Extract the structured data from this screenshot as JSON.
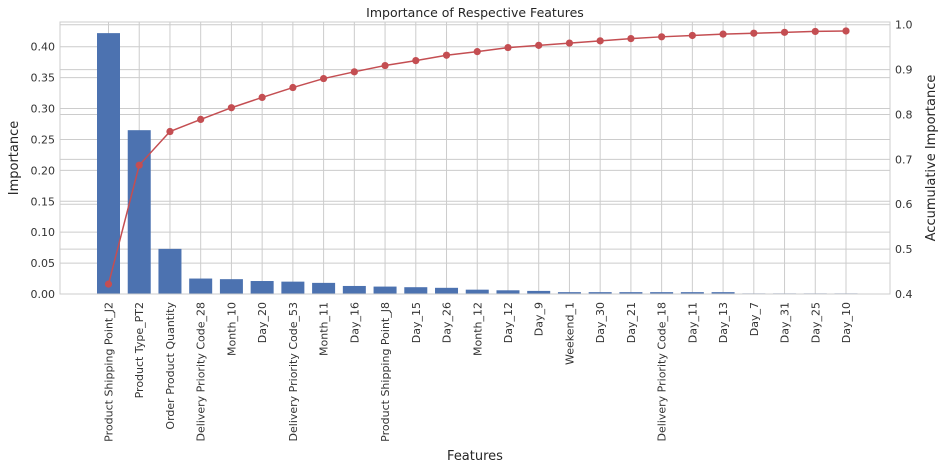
{
  "chart_data": {
    "type": "bar",
    "title": "Importance of Respective Features",
    "xlabel": "Features",
    "ylabel": "Importance",
    "y2label": "Accumulative Importance",
    "categories": [
      "Product Shipping Point_J2",
      "Product Type_PT2",
      "Order Product Quantity",
      "Delivery Priority Code_28",
      "Month_10",
      "Day_20",
      "Delivery Priority Code_53",
      "Month_11",
      "Day_16",
      "Product Shipping Point_J8",
      "Day_15",
      "Day_26",
      "Month_12",
      "Day_12",
      "Day_9",
      "Weekend_1",
      "Day_30",
      "Day_21",
      "Delivery Priority Code_18",
      "Day_11",
      "Day_13",
      "Day_7",
      "Day_31",
      "Day_25",
      "Day_10"
    ],
    "series": [
      {
        "type": "bar",
        "axis": "left",
        "color": "#4c72b0",
        "values": [
          0.422,
          0.265,
          0.073,
          0.025,
          0.024,
          0.021,
          0.02,
          0.018,
          0.013,
          0.012,
          0.011,
          0.01,
          0.007,
          0.006,
          0.005,
          0.003,
          0.003,
          0.003,
          0.003,
          0.003,
          0.003,
          0.001,
          0.001,
          0.001,
          0.001
        ]
      },
      {
        "type": "line",
        "axis": "right",
        "color": "#c44e52",
        "values": [
          0.422,
          0.687,
          0.762,
          0.789,
          0.815,
          0.838,
          0.86,
          0.88,
          0.895,
          0.909,
          0.92,
          0.932,
          0.94,
          0.949,
          0.954,
          0.959,
          0.964,
          0.969,
          0.973,
          0.976,
          0.979,
          0.981,
          0.983,
          0.985,
          0.986
        ]
      }
    ],
    "ylim": [
      0,
      0.44
    ],
    "yticks": [
      0.0,
      0.05,
      0.1,
      0.15,
      0.2,
      0.25,
      0.3,
      0.35,
      0.4
    ],
    "ytick_labels": [
      "0.00",
      "0.05",
      "0.10",
      "0.15",
      "0.20",
      "0.25",
      "0.30",
      "0.35",
      "0.40"
    ],
    "y2lim": [
      0.4,
      1.006
    ],
    "y2ticks": [
      0.4,
      0.5,
      0.6,
      0.7,
      0.8,
      0.9,
      1.0
    ],
    "y2tick_labels": [
      "0.4",
      "0.5",
      "0.6",
      "0.7",
      "0.8",
      "0.9",
      "1.0"
    ],
    "grid": true,
    "grid_color": "#cccccc",
    "background": "#ffffff"
  }
}
